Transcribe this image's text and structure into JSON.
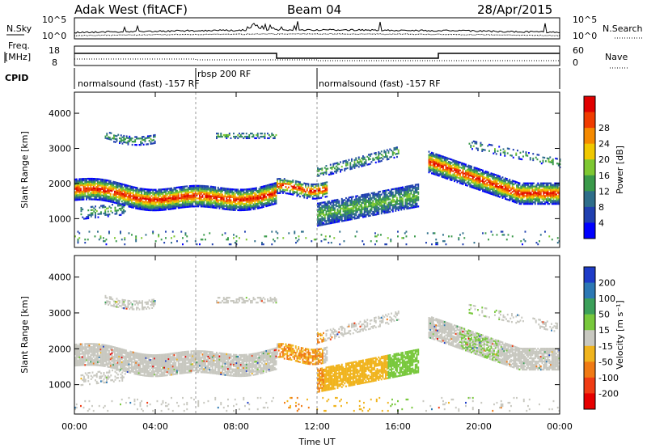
{
  "header": {
    "radar": "Adak West (fitACF)",
    "beam": "Beam 04",
    "date": "28/Apr/2015"
  },
  "left_labels": {
    "nsky": "N.Sky",
    "nsky_ticks": [
      "10^5",
      "10^0"
    ],
    "freq_line1": "Freq.",
    "freq_line2": "[MHz]",
    "freq_ticks": [
      "18",
      "8"
    ],
    "cpid": "CPID"
  },
  "right_labels": {
    "nsearch": "N.Search",
    "nsearch_ticks": [
      "10^5",
      "10^0"
    ],
    "nave": "Nave",
    "nave_ticks": [
      "60",
      "0"
    ]
  },
  "cpid_segments": [
    {
      "label": "normalsound (fast) -157 RF",
      "start": 0,
      "end": 6
    },
    {
      "label": "rbsp 200 RF",
      "start": 6,
      "end": 12
    },
    {
      "label": "normalsound (fast) -157 RF",
      "start": 12,
      "end": 24
    }
  ],
  "xaxis": {
    "label": "Time UT",
    "ticks": [
      "00:00",
      "04:00",
      "08:00",
      "12:00",
      "16:00",
      "20:00",
      "00:00"
    ],
    "range_hours": [
      0,
      24
    ]
  },
  "chart_data": [
    {
      "type": "heatmap",
      "name": "power",
      "ylabel": "Slant Range [km]",
      "yticks": [
        "1000",
        "2000",
        "3000",
        "4000"
      ],
      "ylim": [
        180,
        4600
      ],
      "colorbar_label": "Power [dB]",
      "colorbar_ticks": [
        "4",
        "8",
        "12",
        "16",
        "20",
        "24",
        "28"
      ],
      "colors": [
        "#0000ff",
        "#2040b0",
        "#2e6e8a",
        "#3a9a4a",
        "#7ec832",
        "#f0c800",
        "#f58a00",
        "#f03c00",
        "#e00000"
      ]
    },
    {
      "type": "heatmap",
      "name": "velocity",
      "ylabel": "Slant Range [km]",
      "yticks": [
        "1000",
        "2000",
        "3000",
        "4000"
      ],
      "ylim": [
        180,
        4600
      ],
      "colorbar_label": "Velocity [m s⁻¹]",
      "colorbar_ticks": [
        "200",
        "100",
        "50",
        "15",
        "-15",
        "-50",
        "-100",
        "-200"
      ],
      "colors": [
        "#1e3cc8",
        "#2c78b4",
        "#3ca05a",
        "#78c83c",
        "#c8c8c0",
        "#f0b41e",
        "#f07a14",
        "#f03c14",
        "#e60000"
      ]
    }
  ]
}
